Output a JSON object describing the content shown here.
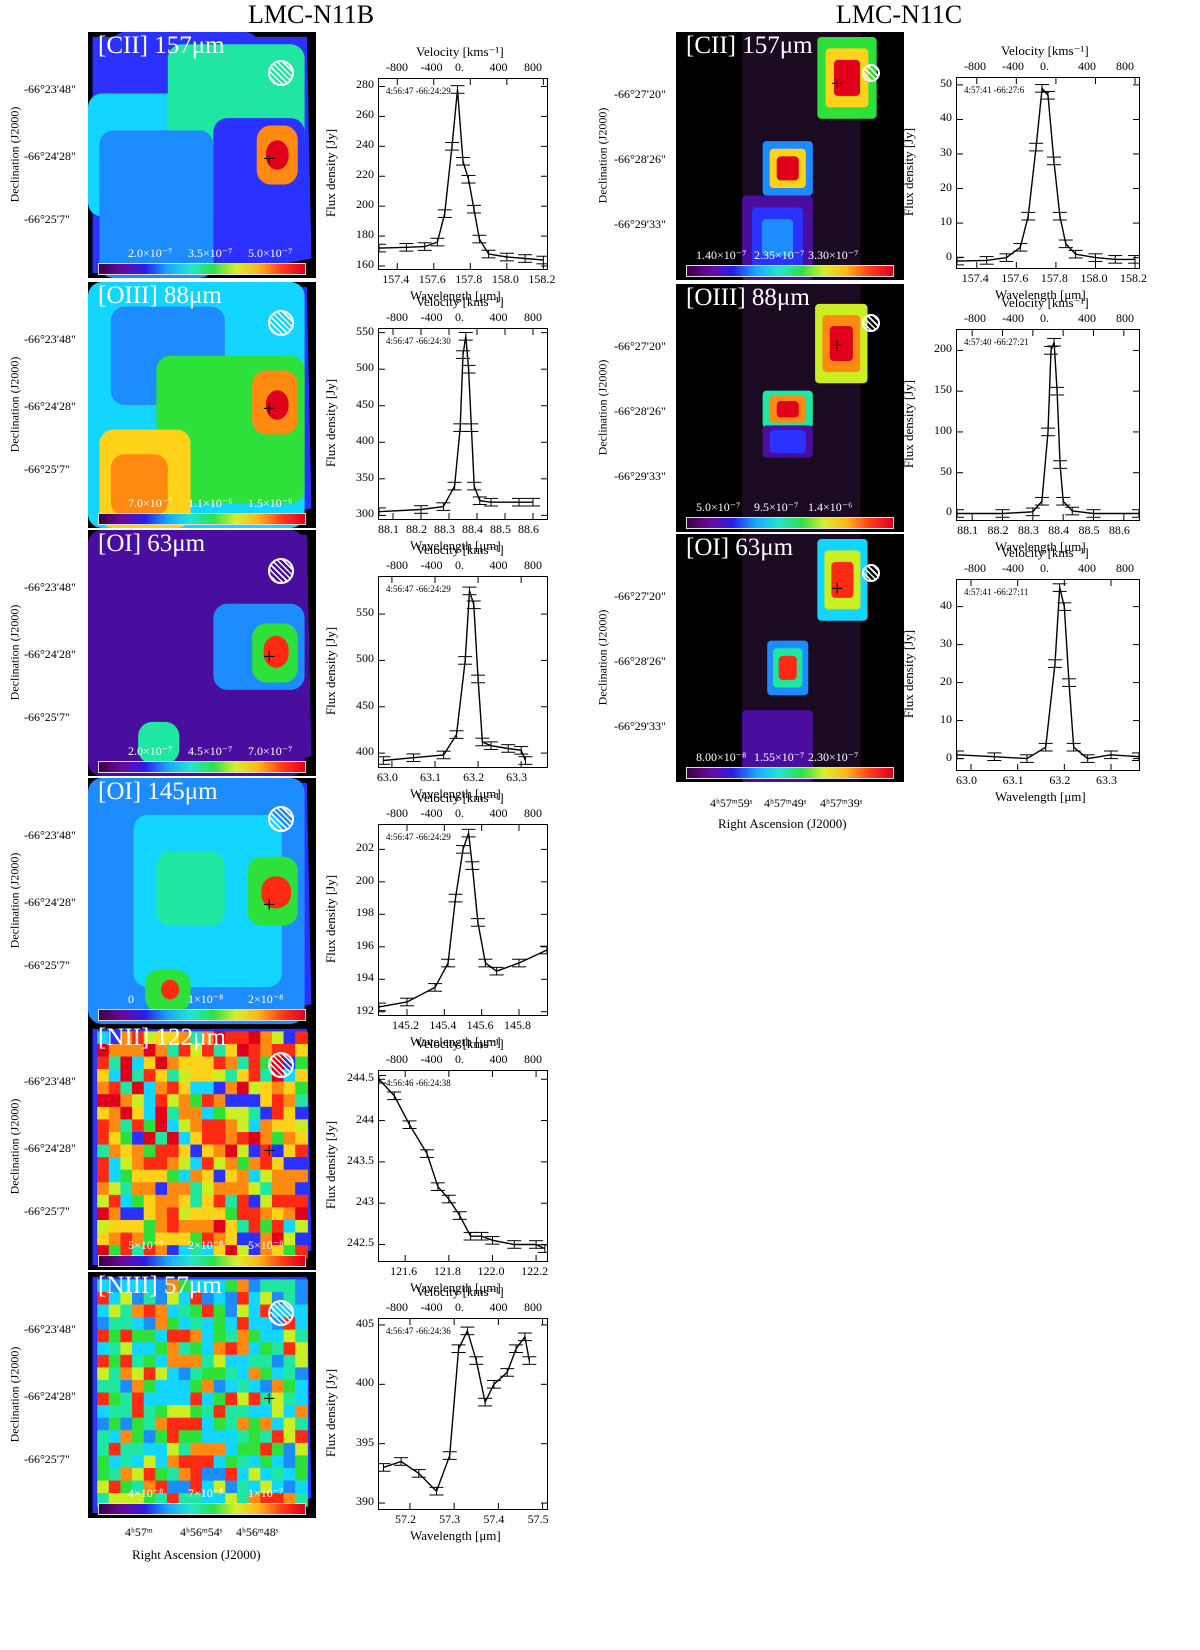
{
  "titles": {
    "left": "LMC-N11B",
    "right": "LMC-N11C"
  },
  "axis_text": {
    "dec_axis": "Declination (J2000)",
    "ra_axis": "Right Ascension (J2000)",
    "flux_axis": "Flux density [Jy]",
    "wavelength_axis": "Wavelength [μm]",
    "velocity_axis": "Velocity [kms⁻¹]"
  },
  "n11b": {
    "dec_ticks": [
      "-66°23'48\"",
      "-66°24'28\"",
      "-66°25'7\""
    ],
    "ra_ticks": [
      "4ʰ57ᵐ",
      "4ʰ56ᵐ54ˢ",
      "4ʰ56ᵐ48ˢ"
    ],
    "panels": [
      {
        "line": "[CII] 157μm",
        "cbar": [
          "2.0×10⁻⁷",
          "3.5×10⁻⁷",
          "5.0×10⁻⁷"
        ],
        "coord": "4:56:47 -66:24:29"
      },
      {
        "line": "[OIII] 88μm",
        "cbar": [
          "7.0×10⁻⁷",
          "1.1×10⁻⁶",
          "1.5×10⁻⁶"
        ],
        "coord": "4:56:47 -66:24:30"
      },
      {
        "line": "[OI] 63μm",
        "cbar": [
          "2.0×10⁻⁷",
          "4.5×10⁻⁷",
          "7.0×10⁻⁷"
        ],
        "coord": "4:56:47 -66:24:29"
      },
      {
        "line": "[OI] 145μm",
        "cbar": [
          "0",
          "1×10⁻⁸",
          "2×10⁻⁸"
        ],
        "coord": "4:56:47 -66:24:29"
      },
      {
        "line": "[NII] 122μm",
        "cbar": [
          "5×10⁻⁹",
          "2×10⁻⁸",
          "5×10⁻⁸"
        ],
        "coord": "4:56:46 -66:24:38"
      },
      {
        "line": "[NIII] 57μm",
        "cbar": [
          "4×10⁻⁸",
          "7×10⁻⁸",
          "1×10⁻⁷"
        ],
        "coord": "4:56:47 -66:24:36"
      }
    ]
  },
  "n11c": {
    "dec_ticks": [
      "-66°27'20\"",
      "-66°28'26\"",
      "-66°29'33\""
    ],
    "ra_ticks": [
      "4ʰ57ᵐ59ˢ",
      "4ʰ57ᵐ49ˢ",
      "4ʰ57ᵐ39ˢ"
    ],
    "panels": [
      {
        "line": "[CII] 157μm",
        "cbar": [
          "1.40×10⁻⁷",
          "2.35×10⁻⁷",
          "3.30×10⁻⁷"
        ],
        "coord": "4:57:41 -66:27:6"
      },
      {
        "line": "[OIII] 88μm",
        "cbar": [
          "5.0×10⁻⁷",
          "9.5×10⁻⁷",
          "1.4×10⁻⁶"
        ],
        "coord": "4:57:40 -66:27:21"
      },
      {
        "line": "[OI] 63μm",
        "cbar": [
          "8.00×10⁻⁸",
          "1.55×10⁻⁷",
          "2.30×10⁻⁷"
        ],
        "coord": "4:57:41 -66:27:11"
      }
    ]
  },
  "chart_data": [
    {
      "id": "b0",
      "type": "line",
      "x": [
        157.3,
        157.45,
        157.55,
        157.62,
        157.66,
        157.7,
        157.73,
        157.76,
        157.79,
        157.82,
        157.85,
        157.9,
        158.0,
        158.1,
        158.2
      ],
      "y": [
        172,
        172.5,
        173,
        176,
        195,
        240,
        278,
        230,
        218,
        198,
        178,
        168,
        166,
        165,
        164
      ],
      "xlim": [
        157.3,
        158.22
      ],
      "ylim": [
        158,
        285
      ],
      "xticks": [
        157.4,
        157.6,
        157.8,
        158.0,
        158.2
      ],
      "xtick_labels": [
        "157.4",
        "157.6",
        "157.8",
        "158.0",
        "158.2"
      ],
      "yticks": [
        160,
        180,
        200,
        220,
        240,
        260,
        280
      ],
      "vel_ticks": [
        "-800",
        "-400",
        "0.",
        "400",
        "800"
      ]
    },
    {
      "id": "b1",
      "type": "line",
      "x": [
        88.05,
        88.2,
        88.28,
        88.32,
        88.34,
        88.35,
        88.36,
        88.37,
        88.38,
        88.39,
        88.41,
        88.45,
        88.55,
        88.6
      ],
      "y": [
        305,
        308,
        312,
        340,
        420,
        520,
        545,
        500,
        420,
        340,
        320,
        318,
        318,
        318
      ],
      "xlim": [
        88.05,
        88.65
      ],
      "ylim": [
        295,
        555
      ],
      "xticks": [
        88.1,
        88.2,
        88.3,
        88.4,
        88.5,
        88.6
      ],
      "xtick_labels": [
        "88.1",
        "88.2",
        "88.3",
        "88.4",
        "88.5",
        "88.6"
      ],
      "yticks": [
        300,
        350,
        400,
        450,
        500,
        550
      ],
      "vel_ticks": [
        "-800",
        "-400",
        "0.",
        "400",
        "800"
      ]
    },
    {
      "id": "b2",
      "type": "line",
      "x": [
        62.98,
        63.05,
        63.12,
        63.15,
        63.17,
        63.18,
        63.19,
        63.2,
        63.21,
        63.23,
        63.27,
        63.3,
        63.31
      ],
      "y": [
        392,
        395,
        398,
        420,
        500,
        575,
        560,
        480,
        412,
        408,
        405,
        403,
        392
      ],
      "xlim": [
        62.97,
        63.36
      ],
      "ylim": [
        385,
        590
      ],
      "xticks": [
        63.0,
        63.1,
        63.2,
        63.3
      ],
      "xtick_labels": [
        "63.0",
        "63.1",
        "63.2",
        "63.3"
      ],
      "yticks": [
        400,
        450,
        500,
        550
      ],
      "vel_ticks": [
        "-800",
        "-400",
        "0.",
        "400",
        "800"
      ]
    },
    {
      "id": "b3",
      "type": "line",
      "x": [
        145.05,
        145.2,
        145.35,
        145.42,
        145.46,
        145.5,
        145.53,
        145.55,
        145.58,
        145.62,
        145.68,
        145.8,
        145.95
      ],
      "y": [
        192.3,
        192.6,
        193.5,
        195,
        199,
        202,
        203,
        201,
        197.5,
        195,
        194.5,
        195,
        195.8
      ],
      "xlim": [
        145.05,
        145.95
      ],
      "ylim": [
        191.8,
        203.5
      ],
      "xticks": [
        145.2,
        145.4,
        145.6,
        145.8
      ],
      "xtick_labels": [
        "145.2",
        "145.4",
        "145.6",
        "145.8"
      ],
      "yticks": [
        192,
        194,
        196,
        198,
        200,
        202
      ],
      "vel_ticks": [
        "-800",
        "-400",
        "0.",
        "400",
        "800"
      ]
    },
    {
      "id": "b4",
      "type": "line",
      "x": [
        121.48,
        121.55,
        121.62,
        121.7,
        121.75,
        121.8,
        121.85,
        121.9,
        121.95,
        122.0,
        122.1,
        122.2,
        122.24
      ],
      "y": [
        244.5,
        244.3,
        243.95,
        243.6,
        243.2,
        243.05,
        242.85,
        242.6,
        242.6,
        242.55,
        242.5,
        242.5,
        242.45
      ],
      "xlim": [
        121.48,
        122.25
      ],
      "ylim": [
        242.3,
        244.6
      ],
      "xticks": [
        121.6,
        121.8,
        122.0,
        122.2
      ],
      "xtick_labels": [
        "121.6",
        "121.8",
        "122.0",
        "122.2"
      ],
      "yticks": [
        242.5,
        243.0,
        243.5,
        244.0,
        244.5
      ],
      "vel_ticks": [
        "-800",
        "-400",
        "0.",
        "400",
        "800"
      ]
    },
    {
      "id": "b5",
      "type": "line",
      "x": [
        57.14,
        57.18,
        57.22,
        57.26,
        57.29,
        57.31,
        57.33,
        57.35,
        57.37,
        57.39,
        57.42,
        57.44,
        57.46,
        57.47
      ],
      "y": [
        393,
        393.5,
        392.5,
        391,
        394,
        403,
        404.5,
        402,
        398.5,
        400,
        401,
        403,
        404,
        402
      ],
      "xlim": [
        57.13,
        57.51
      ],
      "ylim": [
        389.5,
        405.5
      ],
      "xticks": [
        57.2,
        57.3,
        57.4,
        57.5
      ],
      "xtick_labels": [
        "57.2",
        "57.3",
        "57.4",
        "57.5"
      ],
      "yticks": [
        390,
        395,
        400,
        405
      ],
      "vel_ticks": [
        "-800",
        "-400",
        "0.",
        "400",
        "800"
      ]
    },
    {
      "id": "c0",
      "type": "line",
      "x": [
        157.3,
        157.45,
        157.55,
        157.62,
        157.66,
        157.7,
        157.73,
        157.76,
        157.79,
        157.82,
        157.85,
        157.9,
        158.0,
        158.1,
        158.2
      ],
      "y": [
        -1,
        -0.8,
        0,
        3,
        12,
        32,
        49,
        47,
        28,
        12,
        4,
        1,
        0,
        -0.5,
        -0.5
      ],
      "xlim": [
        157.3,
        158.22
      ],
      "ylim": [
        -3,
        52
      ],
      "xticks": [
        157.4,
        157.6,
        157.8,
        158.0,
        158.2
      ],
      "xtick_labels": [
        "157.4",
        "157.6",
        "157.8",
        "158.0",
        "158.2"
      ],
      "yticks": [
        0,
        10,
        20,
        30,
        40,
        50
      ],
      "vel_ticks": [
        "-800",
        "-400",
        "0.",
        "400",
        "800"
      ]
    },
    {
      "id": "c1",
      "type": "line",
      "x": [
        88.05,
        88.2,
        88.3,
        88.33,
        88.35,
        88.36,
        88.37,
        88.38,
        88.39,
        88.4,
        88.43,
        88.5,
        88.65
      ],
      "y": [
        0,
        0,
        2,
        15,
        100,
        200,
        210,
        150,
        60,
        15,
        3,
        0,
        0
      ],
      "xlim": [
        88.05,
        88.65
      ],
      "ylim": [
        -8,
        225
      ],
      "xticks": [
        88.1,
        88.2,
        88.3,
        88.4,
        88.5,
        88.6
      ],
      "xtick_labels": [
        "88.1",
        "88.2",
        "88.3",
        "88.4",
        "88.5",
        "88.6"
      ],
      "yticks": [
        0,
        50,
        100,
        150,
        200
      ],
      "vel_ticks": [
        "-800",
        "-400",
        "0.",
        "400",
        "800"
      ]
    },
    {
      "id": "c2",
      "type": "line",
      "x": [
        62.97,
        63.05,
        63.12,
        63.16,
        63.18,
        63.19,
        63.2,
        63.21,
        63.22,
        63.25,
        63.3,
        63.36
      ],
      "y": [
        1,
        0.5,
        0,
        3,
        25,
        45,
        40,
        20,
        3,
        0,
        1,
        0.5
      ],
      "xlim": [
        62.97,
        63.36
      ],
      "ylim": [
        -3,
        47
      ],
      "xticks": [
        63.0,
        63.1,
        63.2,
        63.3
      ],
      "xtick_labels": [
        "63.0",
        "63.1",
        "63.2",
        "63.3"
      ],
      "yticks": [
        0,
        10,
        20,
        30,
        40
      ],
      "vel_ticks": [
        "-800",
        "-400",
        "0.",
        "400",
        "800"
      ]
    }
  ]
}
